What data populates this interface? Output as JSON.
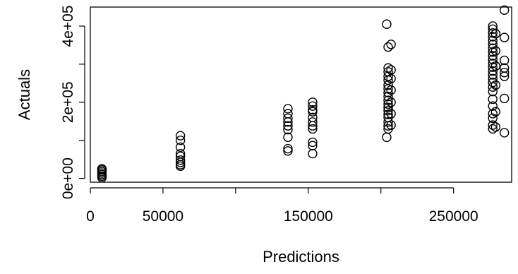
{
  "chart_data": {
    "type": "scatter",
    "title": "",
    "xlabel": "Predictions",
    "ylabel": "Actuals",
    "xlim": [
      0,
      290000
    ],
    "ylim": [
      -10000,
      450000
    ],
    "x_ticks": [
      0,
      50000,
      100000,
      150000,
      200000,
      250000
    ],
    "x_tick_labels": [
      "0",
      "50000",
      "",
      "150000",
      "",
      "250000"
    ],
    "y_ticks": [
      0,
      100000,
      200000,
      300000,
      400000
    ],
    "y_tick_labels": [
      "0e+00",
      "",
      "2e+05",
      "",
      "4e+05"
    ],
    "grid": false,
    "legend": "none",
    "marker": "open-circle",
    "color": "#000000",
    "points": [
      [
        8000,
        2000
      ],
      [
        8000,
        6000
      ],
      [
        8000,
        10000
      ],
      [
        8000,
        14000
      ],
      [
        8000,
        18000
      ],
      [
        8000,
        22000
      ],
      [
        8000,
        25000
      ],
      [
        62000,
        32000
      ],
      [
        62000,
        36000
      ],
      [
        62000,
        42000
      ],
      [
        62000,
        48000
      ],
      [
        62000,
        58000
      ],
      [
        62000,
        65000
      ],
      [
        62000,
        82000
      ],
      [
        62000,
        100000
      ],
      [
        62000,
        112000
      ],
      [
        136000,
        72000
      ],
      [
        136000,
        78000
      ],
      [
        136000,
        108000
      ],
      [
        136000,
        128000
      ],
      [
        136000,
        138000
      ],
      [
        136000,
        148000
      ],
      [
        136000,
        158000
      ],
      [
        136000,
        170000
      ],
      [
        136000,
        183000
      ],
      [
        153000,
        65000
      ],
      [
        153000,
        86000
      ],
      [
        153000,
        95000
      ],
      [
        153000,
        130000
      ],
      [
        153000,
        138000
      ],
      [
        153000,
        148000
      ],
      [
        153000,
        160000
      ],
      [
        153000,
        175000
      ],
      [
        153000,
        180000
      ],
      [
        153000,
        190000
      ],
      [
        153000,
        200000
      ],
      [
        204000,
        108000
      ],
      [
        205000,
        130000
      ],
      [
        205000,
        138000
      ],
      [
        205000,
        148000
      ],
      [
        205000,
        160000
      ],
      [
        205000,
        168000
      ],
      [
        205000,
        178000
      ],
      [
        205000,
        186000
      ],
      [
        205000,
        195000
      ],
      [
        205000,
        205000
      ],
      [
        205000,
        215000
      ],
      [
        205000,
        225000
      ],
      [
        205000,
        235000
      ],
      [
        205000,
        245000
      ],
      [
        205000,
        258000
      ],
      [
        205000,
        268000
      ],
      [
        205000,
        280000
      ],
      [
        205000,
        290000
      ],
      [
        205000,
        345000
      ],
      [
        204000,
        405000
      ],
      [
        207000,
        140000
      ],
      [
        207000,
        170000
      ],
      [
        207000,
        200000
      ],
      [
        207000,
        232000
      ],
      [
        207000,
        262000
      ],
      [
        207000,
        285000
      ],
      [
        207000,
        352000
      ],
      [
        277000,
        130000
      ],
      [
        277000,
        140000
      ],
      [
        277000,
        158000
      ],
      [
        277000,
        170000
      ],
      [
        277000,
        190000
      ],
      [
        277000,
        208000
      ],
      [
        277000,
        228000
      ],
      [
        277000,
        240000
      ],
      [
        277000,
        252000
      ],
      [
        277000,
        262000
      ],
      [
        277000,
        272000
      ],
      [
        277000,
        282000
      ],
      [
        277000,
        292000
      ],
      [
        277000,
        302000
      ],
      [
        277000,
        312000
      ],
      [
        277000,
        322000
      ],
      [
        277000,
        332000
      ],
      [
        277000,
        342000
      ],
      [
        277000,
        352000
      ],
      [
        277000,
        362000
      ],
      [
        277000,
        372000
      ],
      [
        277000,
        382000
      ],
      [
        277000,
        392000
      ],
      [
        277000,
        400000
      ],
      [
        279000,
        135000
      ],
      [
        279000,
        175000
      ],
      [
        279000,
        245000
      ],
      [
        279000,
        295000
      ],
      [
        279000,
        335000
      ],
      [
        279000,
        380000
      ],
      [
        285000,
        120000
      ],
      [
        285000,
        210000
      ],
      [
        285000,
        268000
      ],
      [
        285000,
        278000
      ],
      [
        285000,
        290000
      ],
      [
        285000,
        310000
      ],
      [
        285000,
        370000
      ],
      [
        285000,
        442000
      ]
    ]
  }
}
